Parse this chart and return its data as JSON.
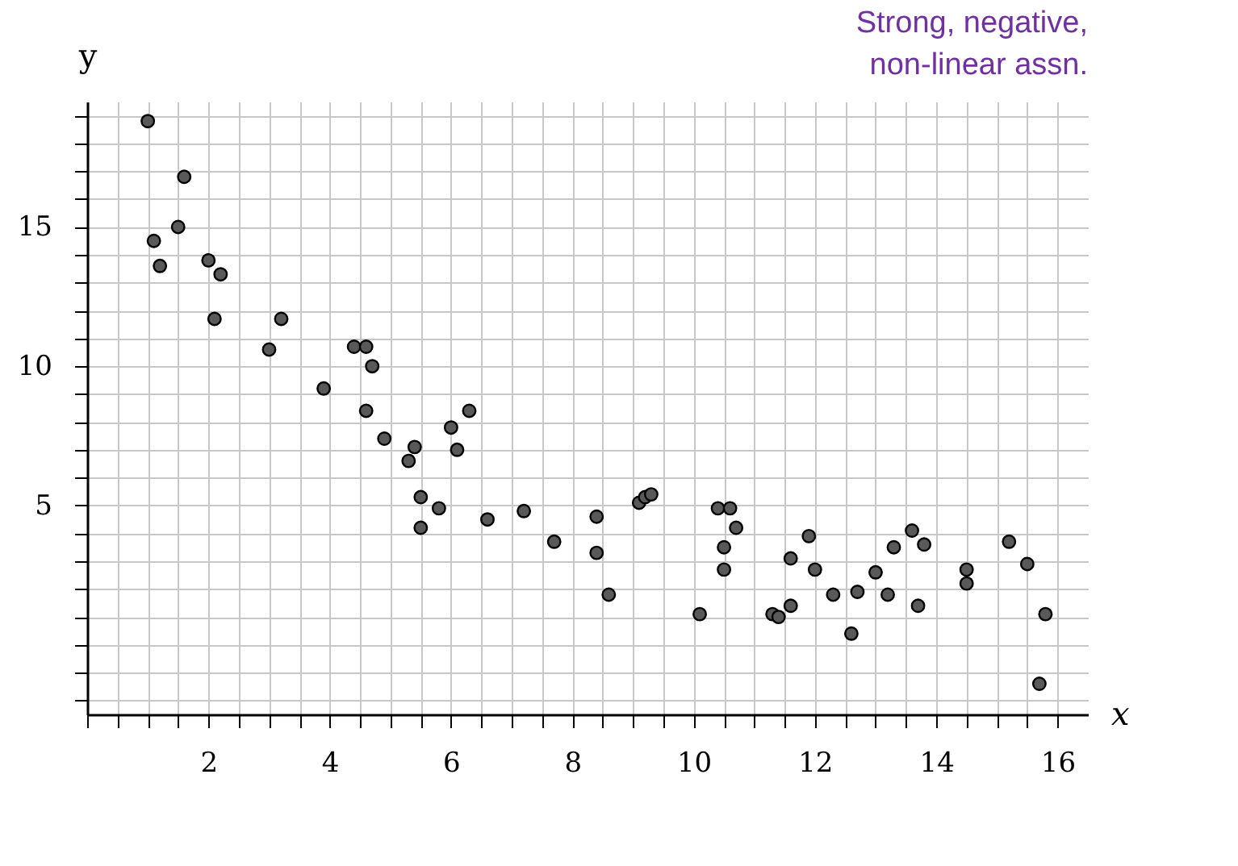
{
  "chart_data": {
    "type": "scatter",
    "xlabel": "x",
    "ylabel": "y",
    "annotations": [
      "Strong, negative,\nnon-linear assn."
    ],
    "x": [
      1.0,
      1.6,
      1.1,
      1.5,
      1.2,
      2.0,
      2.2,
      2.1,
      3.2,
      3.0,
      3.9,
      4.4,
      4.6,
      4.7,
      4.6,
      4.9,
      5.4,
      5.3,
      6.0,
      6.1,
      6.3,
      5.5,
      5.5,
      5.8,
      6.6,
      7.2,
      7.7,
      8.4,
      8.4,
      8.6,
      9.1,
      9.2,
      9.3,
      10.1,
      10.4,
      10.6,
      10.7,
      10.5,
      10.5,
      11.3,
      11.4,
      11.6,
      11.6,
      11.9,
      12.0,
      12.3,
      12.7,
      12.6,
      13.0,
      13.2,
      13.3,
      13.6,
      13.8,
      13.7,
      14.5,
      14.5,
      15.2,
      15.5,
      15.8,
      15.7
    ],
    "values": [
      18.8,
      16.8,
      14.5,
      15.0,
      13.6,
      13.8,
      13.3,
      11.7,
      11.7,
      10.6,
      9.2,
      10.7,
      10.7,
      10.0,
      8.4,
      7.4,
      7.1,
      6.6,
      7.8,
      7.0,
      8.4,
      5.3,
      4.2,
      4.9,
      4.5,
      4.8,
      3.7,
      4.6,
      3.3,
      1.8,
      5.1,
      5.3,
      5.4,
      1.1,
      4.9,
      4.9,
      4.2,
      3.5,
      2.7,
      1.1,
      1.0,
      1.4,
      3.1,
      3.9,
      2.7,
      1.8,
      1.9,
      0.4,
      2.6,
      1.8,
      3.5,
      4.1,
      3.6,
      1.4,
      2.7,
      2.2,
      3.7,
      2.9,
      1.1,
      -1.4
    ],
    "color": "#595959",
    "marker": "circle",
    "grid": true,
    "xlim": [
      0,
      16.5
    ],
    "ylim": [
      -2.5,
      19.5
    ],
    "xticks": [
      {
        "value": 0,
        "label": null
      },
      {
        "value": 0.5,
        "label": null
      },
      {
        "value": 1,
        "label": null
      },
      {
        "value": 1.5,
        "label": null
      },
      2,
      {
        "value": 2.5,
        "label": null
      },
      {
        "value": 3,
        "label": null
      },
      {
        "value": 3.5,
        "label": null
      },
      4,
      {
        "value": 4.5,
        "label": null
      },
      {
        "value": 5,
        "label": null
      },
      {
        "value": 5.5,
        "label": null
      },
      6,
      {
        "value": 6.5,
        "label": null
      },
      {
        "value": 7,
        "label": null
      },
      {
        "value": 7.5,
        "label": null
      },
      8,
      {
        "value": 8.5,
        "label": null
      },
      {
        "value": 9,
        "label": null
      },
      {
        "value": 9.5,
        "label": null
      },
      10,
      {
        "value": 10.5,
        "label": null
      },
      {
        "value": 11,
        "label": null
      },
      {
        "value": 11.5,
        "label": null
      },
      12,
      {
        "value": 12.5,
        "label": null
      },
      {
        "value": 13,
        "label": null
      },
      {
        "value": 13.5,
        "label": null
      },
      14,
      {
        "value": 14.5,
        "label": null
      },
      {
        "value": 15,
        "label": null
      },
      {
        "value": 15.5,
        "label": null
      },
      16
    ],
    "yticks": [
      {
        "value": -2,
        "label": null
      },
      {
        "value": -1,
        "label": null
      },
      {
        "value": 0,
        "label": null
      },
      {
        "value": 1,
        "label": null
      },
      {
        "value": 2,
        "label": null
      },
      {
        "value": 3,
        "label": null
      },
      {
        "value": 4,
        "label": null
      },
      5,
      {
        "value": 6,
        "label": null
      },
      {
        "value": 7,
        "label": null
      },
      {
        "value": 8,
        "label": null
      },
      {
        "value": 9,
        "label": null
      },
      10,
      {
        "value": 11,
        "label": null
      },
      {
        "value": 12,
        "label": null
      },
      {
        "value": 13,
        "label": null
      },
      {
        "value": 14,
        "label": null
      },
      15,
      {
        "value": 16,
        "label": null
      },
      {
        "value": 17,
        "label": null
      },
      {
        "value": 18,
        "label": null
      },
      {
        "value": 19,
        "label": null
      }
    ]
  }
}
